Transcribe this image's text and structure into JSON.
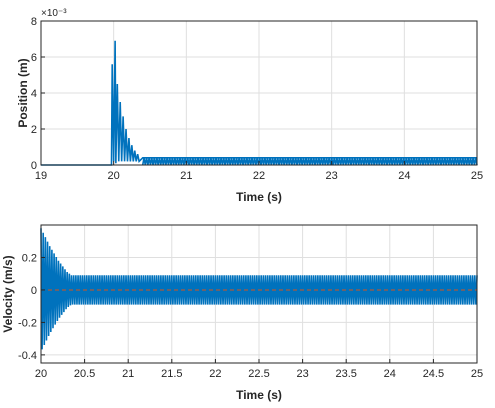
{
  "chart_data": [
    {
      "type": "line",
      "title": "",
      "xlabel": "Time (s)",
      "ylabel": "Position (m)",
      "xlim": [
        19,
        25
      ],
      "ylim": [
        0,
        8
      ],
      "y_exponent_label": "×10⁻³",
      "xticks": [
        "19",
        "20",
        "21",
        "22",
        "23",
        "24",
        "25"
      ],
      "yticks": [
        "0",
        "2",
        "4",
        "6",
        "8"
      ],
      "grid": true,
      "line_color": "#0072BD",
      "series": [
        {
          "x": [
            19.0,
            19.95,
            19.97,
            19.98,
            20.0,
            20.02,
            20.03,
            20.05,
            20.07,
            20.09,
            20.11,
            20.13,
            20.15,
            20.17,
            20.19,
            20.21,
            20.23,
            20.25,
            20.27,
            20.29,
            20.31,
            20.33,
            20.35,
            20.4,
            25.0
          ],
          "y": [
            0.0,
            0.0,
            0.0,
            5.6,
            0.2,
            6.9,
            0.1,
            4.5,
            0.2,
            3.5,
            0.2,
            2.7,
            0.2,
            2.0,
            0.2,
            1.5,
            0.2,
            1.1,
            0.2,
            0.8,
            0.2,
            0.6,
            0.2,
            0.4,
            0.4
          ]
        }
      ],
      "oscillation": {
        "x_start": 20.4,
        "x_end": 25.0,
        "ymin": 0.0,
        "ymax": 0.4
      }
    },
    {
      "type": "line",
      "title": "",
      "xlabel": "Time (s)",
      "ylabel": "Velocity (m/s)",
      "xlim": [
        20,
        25
      ],
      "ylim": [
        -0.45,
        0.4
      ],
      "xticks": [
        "20",
        "20.5",
        "21",
        "21.5",
        "22",
        "22.5",
        "23",
        "23.5",
        "24",
        "24.5",
        "25"
      ],
      "yticks": [
        "-0.4",
        "-0.2",
        "0",
        "0.2"
      ],
      "ytick_values": [
        -0.4,
        -0.2,
        0,
        0.2
      ],
      "grid": true,
      "line_color": "#0072BD",
      "reference_line": {
        "y": 0,
        "color": "#D95319",
        "style": "dashed"
      },
      "envelope": [
        {
          "t": 20.0,
          "amp": 0.38
        },
        {
          "t": 20.1,
          "amp": 0.27
        },
        {
          "t": 20.2,
          "amp": 0.18
        },
        {
          "t": 20.3,
          "amp": 0.11
        },
        {
          "t": 20.35,
          "amp": 0.09
        },
        {
          "t": 25.0,
          "amp": 0.09
        }
      ],
      "oscillation_period_s": 0.025
    }
  ]
}
